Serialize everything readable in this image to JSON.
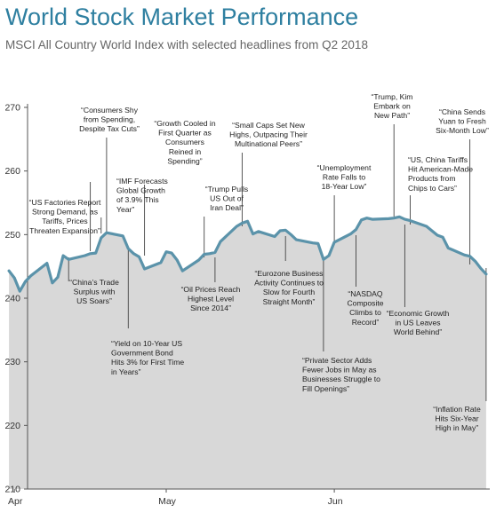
{
  "title": "World Stock Market Performance",
  "subtitle": "MSCI All Country World Index with selected headlines from Q2 2018",
  "colors": {
    "title": "#2e7fa0",
    "line": "#5b93aa",
    "area": "#d8d8d8",
    "leader": "#444444"
  },
  "chart_data": {
    "type": "area",
    "title": "World Stock Market Performance",
    "subtitle": "MSCI All Country World Index with selected headlines from Q2 2018",
    "xlabel": "",
    "ylabel": "",
    "xlim": [
      "2018-04-01",
      "2018-06-30"
    ],
    "ylim": [
      210,
      270
    ],
    "yticks": [
      "210",
      "220",
      "230",
      "240",
      "250",
      "260",
      "270"
    ],
    "xticks": [
      {
        "label": "Apr",
        "date": "2018-04-03"
      },
      {
        "label": "May",
        "date": "2018-05-01"
      },
      {
        "label": "Jun",
        "date": "2018-06-01"
      }
    ],
    "grid": false,
    "series": [
      {
        "x": [
          "2018-04-02",
          "2018-04-03",
          "2018-04-04",
          "2018-04-05",
          "2018-04-06",
          "2018-04-09",
          "2018-04-10",
          "2018-04-11",
          "2018-04-12",
          "2018-04-13",
          "2018-04-16",
          "2018-04-17",
          "2018-04-18",
          "2018-04-19",
          "2018-04-20",
          "2018-04-23",
          "2018-04-24",
          "2018-04-25",
          "2018-04-26",
          "2018-04-27",
          "2018-04-30",
          "2018-05-01",
          "2018-05-02",
          "2018-05-03",
          "2018-05-04",
          "2018-05-07",
          "2018-05-08",
          "2018-05-09",
          "2018-05-10",
          "2018-05-11",
          "2018-05-14",
          "2018-05-15",
          "2018-05-16",
          "2018-05-17",
          "2018-05-18",
          "2018-05-21",
          "2018-05-22",
          "2018-05-23",
          "2018-05-24",
          "2018-05-25",
          "2018-05-28",
          "2018-05-29",
          "2018-05-30",
          "2018-05-31",
          "2018-06-01",
          "2018-06-04",
          "2018-06-05",
          "2018-06-06",
          "2018-06-07",
          "2018-06-08",
          "2018-06-11",
          "2018-06-12",
          "2018-06-13",
          "2018-06-14",
          "2018-06-15",
          "2018-06-18",
          "2018-06-19",
          "2018-06-20",
          "2018-06-21",
          "2018-06-22",
          "2018-06-25",
          "2018-06-26",
          "2018-06-27",
          "2018-06-28",
          "2018-06-29"
        ],
        "values": [
          244.3,
          243.2,
          241.1,
          242.6,
          243.5,
          245.5,
          242.4,
          243.3,
          246.7,
          246.1,
          246.7,
          247.0,
          247.1,
          249.5,
          250.3,
          249.8,
          247.8,
          247.0,
          246.5,
          244.6,
          245.6,
          247.3,
          247.1,
          246.0,
          244.3,
          246.0,
          246.9,
          247.0,
          247.2,
          248.9,
          251.3,
          251.8,
          252.1,
          250.1,
          250.5,
          249.7,
          250.6,
          250.7,
          250.0,
          249.2,
          248.7,
          248.6,
          246.1,
          246.7,
          248.8,
          250.1,
          250.8,
          252.3,
          252.6,
          252.4,
          252.5,
          252.6,
          252.8,
          252.4,
          252.2,
          251.3,
          250.6,
          249.9,
          249.6,
          247.9,
          246.8,
          246.6,
          245.8,
          244.7,
          243.8
        ]
      }
    ],
    "annotations": [
      {
        "text": "“US Factories Report Strong Demand, as Tariffs, Prices Threaten Expansion”",
        "date": "2018-04-19"
      },
      {
        "text": "“China's Trade Surplus with US Soars”",
        "date": "2018-04-13"
      },
      {
        "text": "“Consumers Shy from Spending, Despite Tax Cuts”",
        "date": "2018-04-20"
      },
      {
        "text": "“IMF Forecasts Global Growth of 3.9% This Year”",
        "date": "2018-04-17"
      },
      {
        "text": "“Yield on 10-Year US Government Bond Hits 3% for First Time in Years”",
        "date": "2018-04-24"
      },
      {
        "text": "“Growth Cooled in First Quarter as Consumers Reined in Spending”",
        "date": "2018-04-27"
      },
      {
        "text": "“Trump Pulls US Out of Iran Deal”",
        "date": "2018-05-08"
      },
      {
        "text": "“Oil Prices Reach Highest Level Since 2014”",
        "date": "2018-05-10"
      },
      {
        "text": "“Small Caps Set New Highs, Outpacing Their Multinational Peers”",
        "date": "2018-05-15"
      },
      {
        "text": "“Eurozone Business Activity Continues to Slow for Fourth Straight Month”",
        "date": "2018-05-23"
      },
      {
        "text": "“Unemployment Rate Falls to 18-Year Low”",
        "date": "2018-06-01"
      },
      {
        "text": "“Private Sector Adds Fewer Jobs in May as Businesses Struggle to Fill Openings”",
        "date": "2018-05-30"
      },
      {
        "text": "“NASDAQ Composite Climbs to Record”",
        "date": "2018-06-05"
      },
      {
        "text": "“Trump, Kim Embark on New Path”",
        "date": "2018-06-12"
      },
      {
        "text": "“US, China Tariffs Hit American-Made Products from Chips to Cars”",
        "date": "2018-06-15"
      },
      {
        "text": "“Economic Growth in US Leaves World Behind”",
        "date": "2018-06-14"
      },
      {
        "text": "“China Sends Yuan to Fresh Six-Month Low”",
        "date": "2018-06-26"
      },
      {
        "text": "“Inflation Rate Hits Six-Year High in May”",
        "date": "2018-06-29"
      }
    ]
  }
}
